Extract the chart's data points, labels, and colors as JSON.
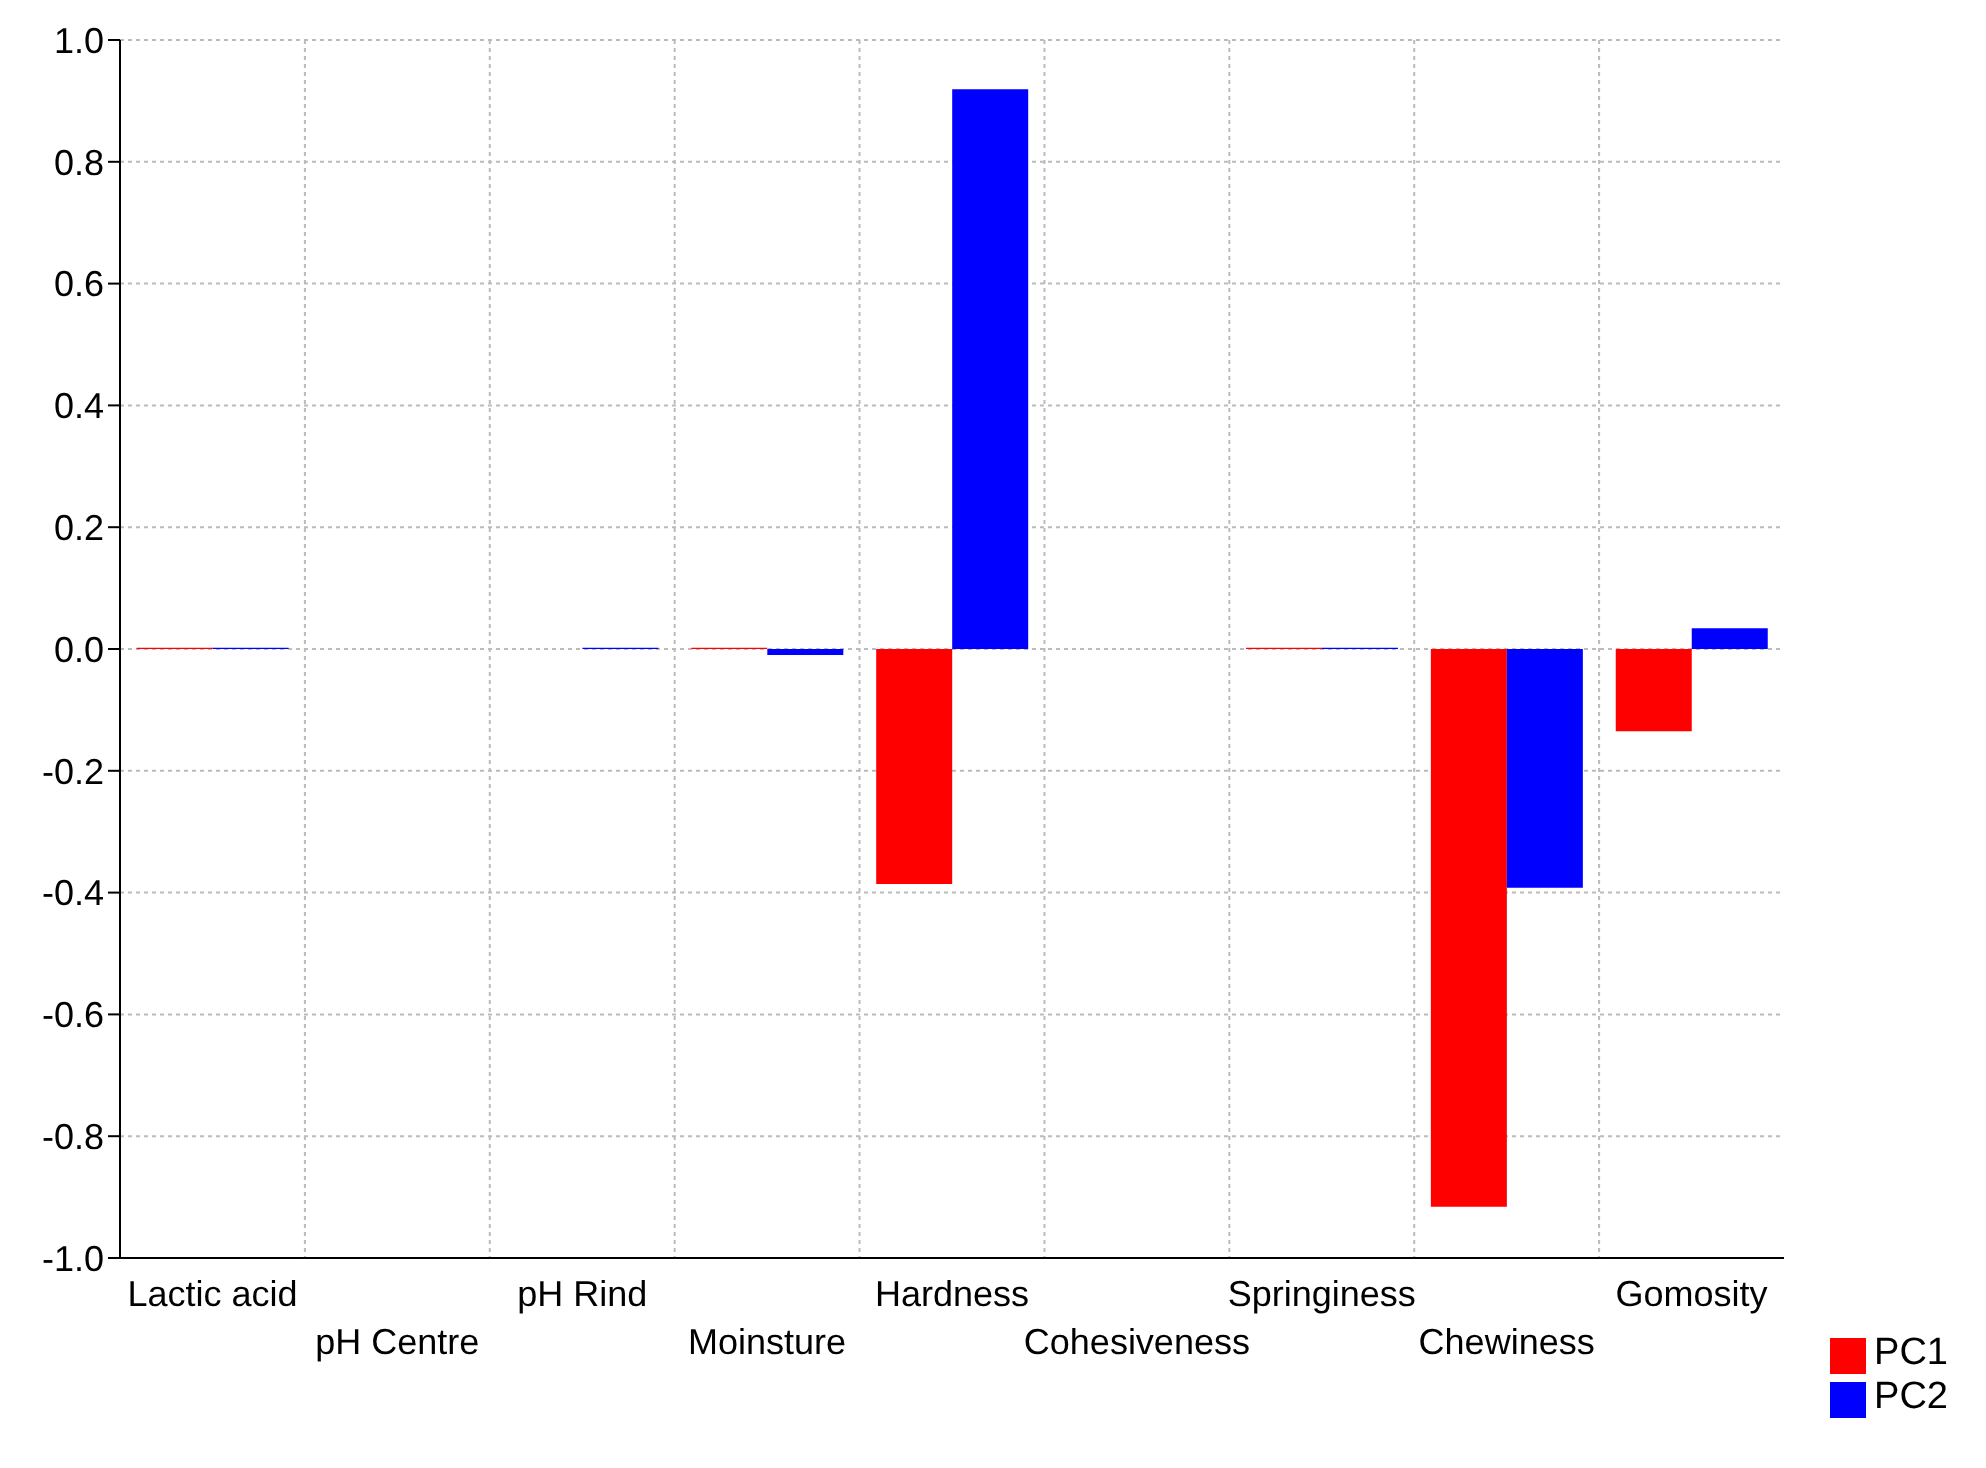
{
  "chart_data": {
    "type": "bar",
    "categories": [
      "Lactic acid",
      "pH Centre",
      "pH Rind",
      "Moinsture",
      "Hardness",
      "Cohesiveness",
      "Springiness",
      "Chewiness",
      "Gomosity"
    ],
    "series": [
      {
        "name": "PC1",
        "color": "#ff0000",
        "values": [
          0.002,
          0,
          0,
          0.002,
          -0.386,
          0,
          0.002,
          -0.916,
          -0.135
        ]
      },
      {
        "name": "PC2",
        "color": "#0000ff",
        "values": [
          0.002,
          0,
          0.002,
          -0.01,
          0.919,
          0,
          0.002,
          -0.392,
          0.034
        ]
      }
    ],
    "ylim": [
      -1,
      1
    ],
    "yticks": [
      {
        "value": -1,
        "label": "-1.0"
      },
      {
        "value": -0.8,
        "label": "-0.8"
      },
      {
        "value": -0.6,
        "label": "-0.6"
      },
      {
        "value": -0.4,
        "label": "-0.4"
      },
      {
        "value": -0.2,
        "label": "-0.2"
      },
      {
        "value": 0,
        "label": "0.0"
      },
      {
        "value": 0.2,
        "label": "0.2"
      },
      {
        "value": 0.4,
        "label": "0.4"
      },
      {
        "value": 0.6,
        "label": "0.6"
      },
      {
        "value": 0.8,
        "label": "0.8"
      },
      {
        "value": 1,
        "label": "1.0"
      }
    ],
    "grid": true,
    "legend": "bottom right"
  }
}
